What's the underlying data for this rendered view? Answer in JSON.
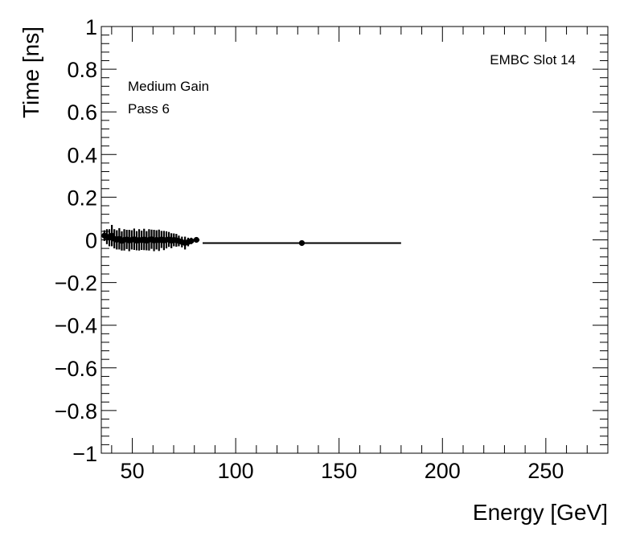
{
  "chart_data": {
    "type": "scatter",
    "xlabel": "Energy [GeV]",
    "ylabel": "Time [ns]",
    "xlim": [
      35,
      280
    ],
    "ylim": [
      -1,
      1
    ],
    "x_ticks": [
      50,
      100,
      150,
      200,
      250
    ],
    "x_tick_labels": [
      "50",
      "100",
      "150",
      "200",
      "250"
    ],
    "y_ticks": [
      -1,
      -0.8,
      -0.6,
      -0.4,
      -0.2,
      0,
      0.2,
      0.4,
      0.6,
      0.8,
      1
    ],
    "y_tick_labels": [
      "−1",
      "−0.8",
      "−0.6",
      "−0.4",
      "−0.2",
      "0",
      "0.2",
      "0.4",
      "0.6",
      "0.8",
      "1"
    ],
    "grid": false,
    "annotations": {
      "top_right": "EMBC Slot 14",
      "line1": "Medium Gain",
      "line2": "Pass 6"
    },
    "marker_color": "#000000",
    "points": [
      {
        "x": 36.5,
        "y": 0.02,
        "yerr": 0.025,
        "xerr": 0.6
      },
      {
        "x": 37.7,
        "y": 0.015,
        "yerr": 0.035,
        "xerr": 0.6
      },
      {
        "x": 38.9,
        "y": 0.01,
        "yerr": 0.04,
        "xerr": 0.6
      },
      {
        "x": 40.1,
        "y": 0.02,
        "yerr": 0.05,
        "xerr": 0.6
      },
      {
        "x": 41.3,
        "y": 0.005,
        "yerr": 0.045,
        "xerr": 0.6
      },
      {
        "x": 42.5,
        "y": 0.0,
        "yerr": 0.045,
        "xerr": 0.6
      },
      {
        "x": 43.7,
        "y": 0.005,
        "yerr": 0.05,
        "xerr": 0.6
      },
      {
        "x": 44.9,
        "y": -0.005,
        "yerr": 0.045,
        "xerr": 0.6
      },
      {
        "x": 46.1,
        "y": 0.0,
        "yerr": 0.05,
        "xerr": 0.6
      },
      {
        "x": 47.3,
        "y": 0.002,
        "yerr": 0.045,
        "xerr": 0.6
      },
      {
        "x": 48.5,
        "y": -0.003,
        "yerr": 0.05,
        "xerr": 0.6
      },
      {
        "x": 49.7,
        "y": 0.0,
        "yerr": 0.045,
        "xerr": 0.6
      },
      {
        "x": 50.9,
        "y": 0.003,
        "yerr": 0.05,
        "xerr": 0.6
      },
      {
        "x": 52.1,
        "y": -0.004,
        "yerr": 0.045,
        "xerr": 0.6
      },
      {
        "x": 53.3,
        "y": 0.0,
        "yerr": 0.05,
        "xerr": 0.6
      },
      {
        "x": 54.5,
        "y": -0.002,
        "yerr": 0.045,
        "xerr": 0.6
      },
      {
        "x": 55.7,
        "y": 0.002,
        "yerr": 0.05,
        "xerr": 0.6
      },
      {
        "x": 56.9,
        "y": -0.004,
        "yerr": 0.045,
        "xerr": 0.6
      },
      {
        "x": 58.1,
        "y": 0.0,
        "yerr": 0.05,
        "xerr": 0.6
      },
      {
        "x": 59.3,
        "y": 0.003,
        "yerr": 0.045,
        "xerr": 0.6
      },
      {
        "x": 60.5,
        "y": -0.003,
        "yerr": 0.05,
        "xerr": 0.6
      },
      {
        "x": 61.7,
        "y": 0.0,
        "yerr": 0.045,
        "xerr": 0.6
      },
      {
        "x": 62.9,
        "y": -0.002,
        "yerr": 0.05,
        "xerr": 0.6
      },
      {
        "x": 64.1,
        "y": 0.002,
        "yerr": 0.04,
        "xerr": 0.6
      },
      {
        "x": 65.3,
        "y": -0.003,
        "yerr": 0.045,
        "xerr": 0.6
      },
      {
        "x": 66.5,
        "y": 0.0,
        "yerr": 0.04,
        "xerr": 0.6
      },
      {
        "x": 67.7,
        "y": 0.002,
        "yerr": 0.035,
        "xerr": 0.6
      },
      {
        "x": 68.9,
        "y": -0.004,
        "yerr": 0.035,
        "xerr": 0.6
      },
      {
        "x": 70.1,
        "y": 0.0,
        "yerr": 0.03,
        "xerr": 0.6
      },
      {
        "x": 71.3,
        "y": -0.002,
        "yerr": 0.03,
        "xerr": 0.6
      },
      {
        "x": 72.5,
        "y": -0.005,
        "yerr": 0.025,
        "xerr": 0.6
      },
      {
        "x": 74.0,
        "y": -0.01,
        "yerr": 0.025,
        "xerr": 0.8
      },
      {
        "x": 75.5,
        "y": -0.015,
        "yerr": 0.03,
        "xerr": 0.8
      },
      {
        "x": 77.0,
        "y": -0.01,
        "yerr": 0.02,
        "xerr": 0.8
      },
      {
        "x": 78.5,
        "y": -0.005,
        "yerr": 0.015,
        "xerr": 0.8
      },
      {
        "x": 81.0,
        "y": 0.0,
        "yerr": 0.012,
        "xerr": 1.5
      },
      {
        "x": 132.0,
        "y": -0.015,
        "yerr": 0.008,
        "xerr": 48.0
      }
    ]
  }
}
